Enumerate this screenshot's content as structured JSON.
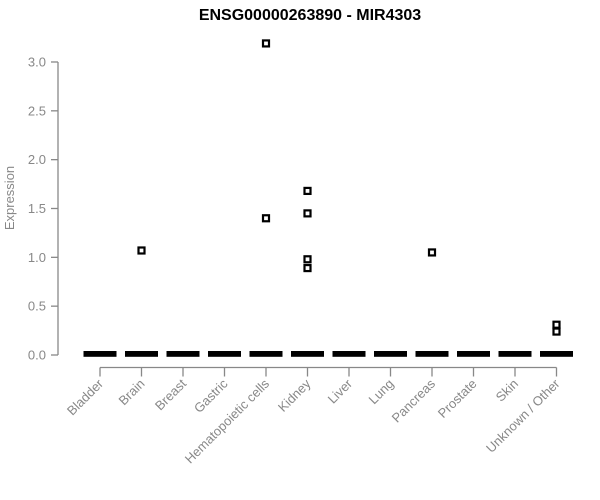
{
  "chart_data": {
    "type": "scatter",
    "title": "ENSG00000263890 - MIR4303",
    "ylabel": "Expression",
    "xlabel": "",
    "ylim": [
      0,
      3.3
    ],
    "yticks": [
      0,
      0.5,
      1,
      1.5,
      2,
      2.5,
      3
    ],
    "categories": [
      "Bladder",
      "Brain",
      "Breast",
      "Gastric",
      "Hematopoietic cells",
      "Kidney",
      "Liver",
      "Lung",
      "Pancreas",
      "Prostate",
      "Skin",
      "Unknown / Other"
    ],
    "points": {
      "Brain": [
        1.07
      ],
      "Hematopoietic cells": [
        3.19,
        1.4
      ],
      "Kidney": [
        1.68,
        1.45,
        0.98,
        0.89
      ],
      "Pancreas": [
        1.05
      ],
      "Unknown / Other": [
        0.31,
        0.24
      ]
    },
    "zero_cluster_all_categories": true,
    "marker": "open-square",
    "grid": false,
    "legend_position": "none",
    "colors": {
      "marker": "#000000",
      "axis": "#888888",
      "tick_label": "#888888",
      "title": "#000000",
      "background": "#ffffff"
    }
  }
}
